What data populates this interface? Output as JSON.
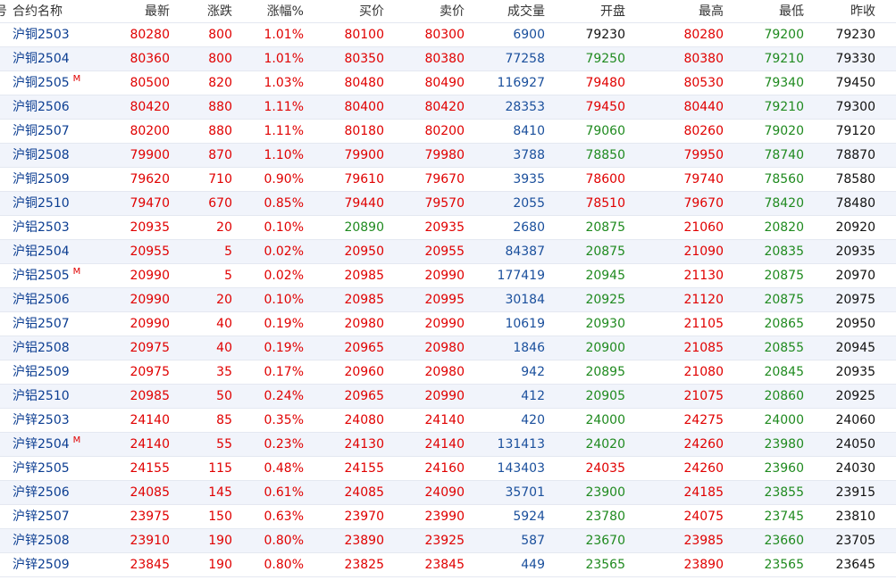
{
  "colors": {
    "up": "#e00000",
    "down": "#1f8a1f",
    "volume": "#1a4f9c",
    "name": "#0b3d91",
    "neutral": "#111111",
    "row_alt": "#f1f4fb"
  },
  "header": {
    "idx": "号",
    "name": "合约名称",
    "latest": "最新",
    "change": "涨跌",
    "pct": "涨幅%",
    "bid": "买价",
    "ask": "卖价",
    "volume": "成交量",
    "open": "开盘",
    "high": "最高",
    "low": "最低",
    "prev": "昨收"
  },
  "rows": [
    {
      "name": "沪铜2503",
      "badge": "",
      "latest": "80280",
      "change": "800",
      "pct": "1.01%",
      "bid": "80100",
      "ask": "80300",
      "volume": "6900",
      "open": "79230",
      "high": "80280",
      "low": "79200",
      "prev": "79230"
    },
    {
      "name": "沪铜2504",
      "badge": "",
      "latest": "80360",
      "change": "800",
      "pct": "1.01%",
      "bid": "80350",
      "ask": "80380",
      "volume": "77258",
      "open": "79250",
      "high": "80380",
      "low": "79210",
      "prev": "79330"
    },
    {
      "name": "沪铜2505",
      "badge": "M",
      "latest": "80500",
      "change": "820",
      "pct": "1.03%",
      "bid": "80480",
      "ask": "80490",
      "volume": "116927",
      "open": "79480",
      "high": "80530",
      "low": "79340",
      "prev": "79450"
    },
    {
      "name": "沪铜2506",
      "badge": "",
      "latest": "80420",
      "change": "880",
      "pct": "1.11%",
      "bid": "80400",
      "ask": "80420",
      "volume": "28353",
      "open": "79450",
      "high": "80440",
      "low": "79210",
      "prev": "79300"
    },
    {
      "name": "沪铜2507",
      "badge": "",
      "latest": "80200",
      "change": "880",
      "pct": "1.11%",
      "bid": "80180",
      "ask": "80200",
      "volume": "8410",
      "open": "79060",
      "high": "80260",
      "low": "79020",
      "prev": "79120"
    },
    {
      "name": "沪铜2508",
      "badge": "",
      "latest": "79900",
      "change": "870",
      "pct": "1.10%",
      "bid": "79900",
      "ask": "79980",
      "volume": "3788",
      "open": "78850",
      "high": "79950",
      "low": "78740",
      "prev": "78870"
    },
    {
      "name": "沪铜2509",
      "badge": "",
      "latest": "79620",
      "change": "710",
      "pct": "0.90%",
      "bid": "79610",
      "ask": "79670",
      "volume": "3935",
      "open": "78600",
      "high": "79740",
      "low": "78560",
      "prev": "78580"
    },
    {
      "name": "沪铜2510",
      "badge": "",
      "latest": "79470",
      "change": "670",
      "pct": "0.85%",
      "bid": "79440",
      "ask": "79570",
      "volume": "2055",
      "open": "78510",
      "high": "79670",
      "low": "78420",
      "prev": "78480"
    },
    {
      "name": "沪铝2503",
      "badge": "",
      "latest": "20935",
      "change": "20",
      "pct": "0.10%",
      "bid": "20890",
      "ask": "20935",
      "volume": "2680",
      "open": "20875",
      "high": "21060",
      "low": "20820",
      "prev": "20920"
    },
    {
      "name": "沪铝2504",
      "badge": "",
      "latest": "20955",
      "change": "5",
      "pct": "0.02%",
      "bid": "20950",
      "ask": "20955",
      "volume": "84387",
      "open": "20875",
      "high": "21090",
      "low": "20835",
      "prev": "20935"
    },
    {
      "name": "沪铝2505",
      "badge": "M",
      "latest": "20990",
      "change": "5",
      "pct": "0.02%",
      "bid": "20985",
      "ask": "20990",
      "volume": "177419",
      "open": "20945",
      "high": "21130",
      "low": "20875",
      "prev": "20970"
    },
    {
      "name": "沪铝2506",
      "badge": "",
      "latest": "20990",
      "change": "20",
      "pct": "0.10%",
      "bid": "20985",
      "ask": "20995",
      "volume": "30184",
      "open": "20925",
      "high": "21120",
      "low": "20875",
      "prev": "20975"
    },
    {
      "name": "沪铝2507",
      "badge": "",
      "latest": "20990",
      "change": "40",
      "pct": "0.19%",
      "bid": "20980",
      "ask": "20990",
      "volume": "10619",
      "open": "20930",
      "high": "21105",
      "low": "20865",
      "prev": "20950"
    },
    {
      "name": "沪铝2508",
      "badge": "",
      "latest": "20975",
      "change": "40",
      "pct": "0.19%",
      "bid": "20965",
      "ask": "20980",
      "volume": "1846",
      "open": "20900",
      "high": "21085",
      "low": "20855",
      "prev": "20945"
    },
    {
      "name": "沪铝2509",
      "badge": "",
      "latest": "20975",
      "change": "35",
      "pct": "0.17%",
      "bid": "20960",
      "ask": "20980",
      "volume": "942",
      "open": "20895",
      "high": "21080",
      "low": "20845",
      "prev": "20935"
    },
    {
      "name": "沪铝2510",
      "badge": "",
      "latest": "20985",
      "change": "50",
      "pct": "0.24%",
      "bid": "20965",
      "ask": "20990",
      "volume": "412",
      "open": "20905",
      "high": "21075",
      "low": "20860",
      "prev": "20925"
    },
    {
      "name": "沪锌2503",
      "badge": "",
      "latest": "24140",
      "change": "85",
      "pct": "0.35%",
      "bid": "24080",
      "ask": "24140",
      "volume": "420",
      "open": "24000",
      "high": "24275",
      "low": "24000",
      "prev": "24060"
    },
    {
      "name": "沪锌2504",
      "badge": "M",
      "latest": "24140",
      "change": "55",
      "pct": "0.23%",
      "bid": "24130",
      "ask": "24140",
      "volume": "131413",
      "open": "24020",
      "high": "24260",
      "low": "23980",
      "prev": "24050"
    },
    {
      "name": "沪锌2505",
      "badge": "",
      "latest": "24155",
      "change": "115",
      "pct": "0.48%",
      "bid": "24155",
      "ask": "24160",
      "volume": "143403",
      "open": "24035",
      "high": "24260",
      "low": "23960",
      "prev": "24030"
    },
    {
      "name": "沪锌2506",
      "badge": "",
      "latest": "24085",
      "change": "145",
      "pct": "0.61%",
      "bid": "24085",
      "ask": "24090",
      "volume": "35701",
      "open": "23900",
      "high": "24185",
      "low": "23855",
      "prev": "23915"
    },
    {
      "name": "沪锌2507",
      "badge": "",
      "latest": "23975",
      "change": "150",
      "pct": "0.63%",
      "bid": "23970",
      "ask": "23990",
      "volume": "5924",
      "open": "23780",
      "high": "24075",
      "low": "23745",
      "prev": "23810"
    },
    {
      "name": "沪锌2508",
      "badge": "",
      "latest": "23910",
      "change": "190",
      "pct": "0.80%",
      "bid": "23890",
      "ask": "23925",
      "volume": "587",
      "open": "23670",
      "high": "23985",
      "low": "23660",
      "prev": "23705"
    },
    {
      "name": "沪锌2509",
      "badge": "",
      "latest": "23845",
      "change": "190",
      "pct": "0.80%",
      "bid": "23825",
      "ask": "23845",
      "volume": "449",
      "open": "23565",
      "high": "23890",
      "low": "23565",
      "prev": "23645"
    }
  ]
}
